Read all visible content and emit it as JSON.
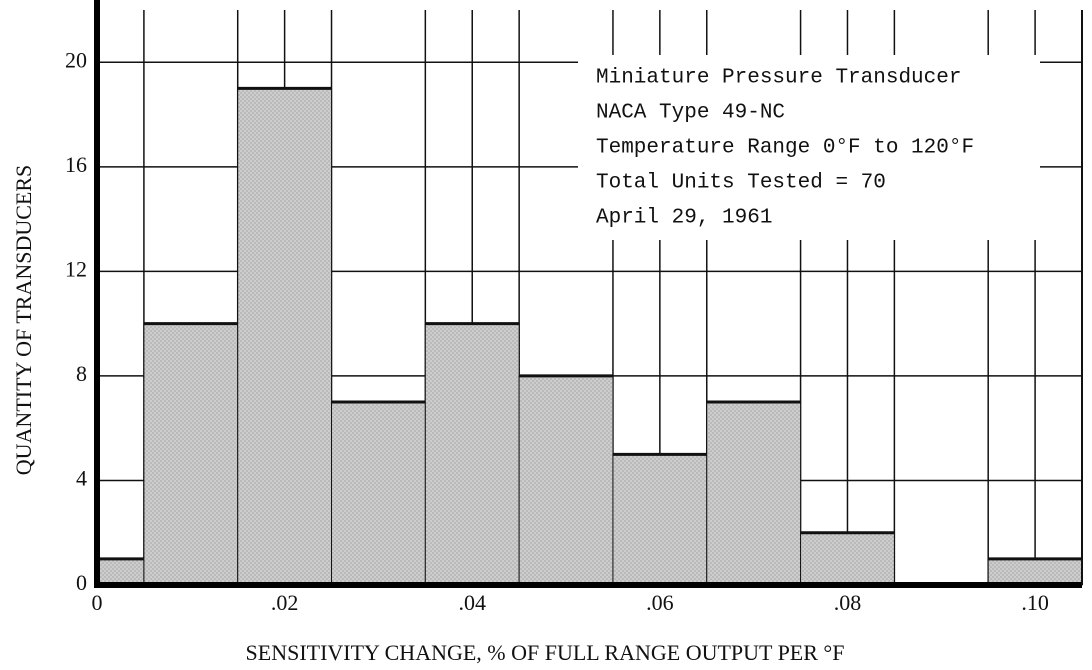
{
  "chart_data": {
    "type": "histogram",
    "x_label": "SENSITIVITY CHANGE, % OF FULL RANGE OUTPUT PER °F",
    "y_label": "QUANTITY OF TRANSDUCERS",
    "annotation": [
      "Miniature Pressure Transducer",
      "NACA Type 49-NC",
      "Temperature Range 0°F to 120°F",
      "Total Units Tested = 70",
      "April 29, 1961"
    ],
    "bins": [
      0,
      0.005,
      0.015,
      0.025,
      0.035,
      0.045,
      0.055,
      0.065,
      0.075,
      0.085,
      0.095,
      0.105
    ],
    "values": [
      1,
      10,
      19,
      7,
      10,
      8,
      5,
      7,
      2,
      0,
      1
    ],
    "color": "#cdcdcd",
    "xlim": [
      0,
      0.105
    ],
    "xticks": [
      0,
      {
        "value": 0.02,
        "label": ".02"
      },
      {
        "value": 0.04,
        "label": ".04"
      },
      {
        "value": 0.06,
        "label": ".06"
      },
      {
        "value": 0.08,
        "label": ".08"
      },
      {
        "value": 0.1,
        "label": ".10"
      }
    ],
    "ylim": [
      0,
      22
    ],
    "yticks": [
      0,
      4,
      8,
      12,
      16,
      20
    ],
    "grid": true
  }
}
